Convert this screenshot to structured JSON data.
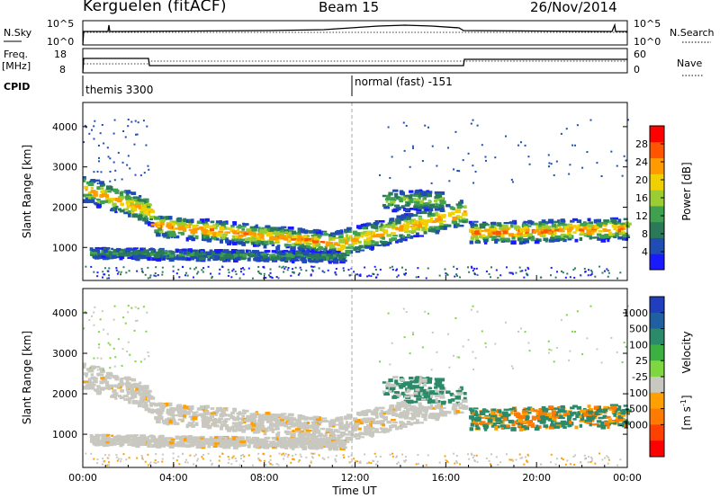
{
  "header": {
    "station": "Kerguelen (fitACF)",
    "beam": "Beam 15",
    "date": "26/Nov/2014"
  },
  "top_panels": {
    "nsky_label": "N.Sky",
    "nsky_ticks": [
      "10^5",
      "10^0"
    ],
    "nsearch_label": "N.Search",
    "nsearch_ticks": [
      "10^5",
      "10^0"
    ],
    "freq_label": "Freq.",
    "freq_unit": "[MHz]",
    "freq_ticks": [
      "18",
      "8"
    ],
    "nave_label": "Nave",
    "nave_ticks": [
      "60",
      "0"
    ],
    "cpid_label": "CPID",
    "cpid_segments": [
      {
        "start_h": 0,
        "label": "themis 3300"
      },
      {
        "start_h": 12,
        "label": "normal (fast) -151"
      }
    ]
  },
  "chart_data": [
    {
      "type": "heatmap",
      "title": "",
      "ylabel": "Slant Range [km]",
      "xlabel": "",
      "xlim": [
        0,
        24
      ],
      "ylim": [
        180,
        4600
      ],
      "yticks": [
        "4000",
        "3000",
        "2000",
        "1000"
      ],
      "yticks_values": [
        4000,
        3000,
        2000,
        1000
      ],
      "colorbar": {
        "label": "Power [dB]",
        "ticks": [
          "28",
          "24",
          "20",
          "16",
          "12",
          "8",
          "4"
        ],
        "tick_values": [
          28,
          24,
          20,
          16,
          12,
          8,
          4
        ],
        "range": [
          0,
          32
        ],
        "colors": [
          "#1a1aff",
          "#1f4db3",
          "#2a7a5a",
          "#3fa050",
          "#9acd32",
          "#f0d000",
          "#ff9a00",
          "#ff5500",
          "#ff0000"
        ]
      }
    },
    {
      "type": "heatmap",
      "title": "",
      "ylabel": "Slant Range [km]",
      "xlabel": "Time UT",
      "xlim": [
        0,
        24
      ],
      "ylim": [
        180,
        4600
      ],
      "yticks": [
        "4000",
        "3000",
        "2000",
        "1000"
      ],
      "yticks_values": [
        4000,
        3000,
        2000,
        1000
      ],
      "xticks": [
        "00:00",
        "04:00",
        "08:00",
        "12:00",
        "16:00",
        "20:00",
        "00:00"
      ],
      "xticks_values": [
        0,
        4,
        8,
        12,
        16,
        20,
        24
      ],
      "colorbar": {
        "label": "Velocity",
        "unit": "[m s",
        "unit_exp": "-1",
        "unit_close": "]",
        "ticks": [
          "1000",
          "500",
          "100",
          "25",
          "-25",
          "-100",
          "-500",
          "-1000"
        ],
        "colors": [
          "#1f3fbf",
          "#2060a0",
          "#2a8a6a",
          "#3cb040",
          "#7ed640",
          "#c8c8c0",
          "#ffa000",
          "#ff7a00",
          "#ff4000",
          "#ff0000"
        ]
      }
    }
  ]
}
